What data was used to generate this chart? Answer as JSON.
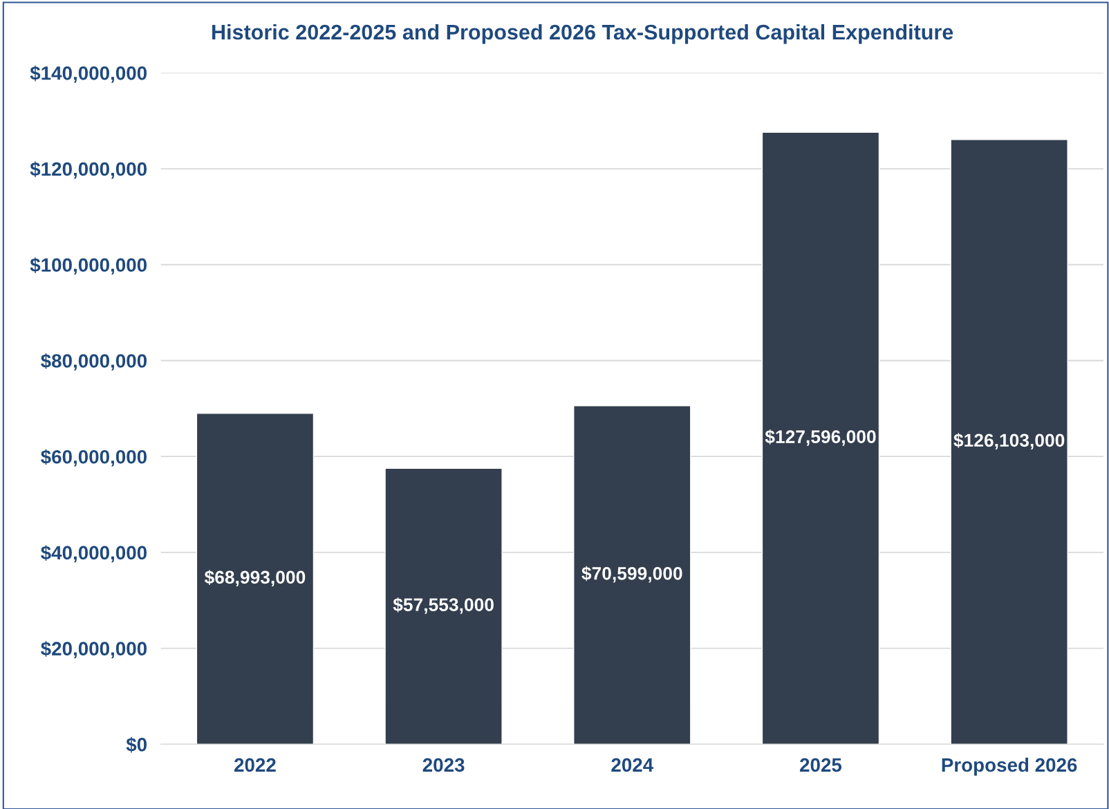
{
  "chart_data": {
    "type": "bar",
    "title": "Historic 2022-2025 and Proposed 2026 Tax-Supported Capital Expenditure",
    "categories": [
      "2022",
      "2023",
      "2024",
      "2025",
      "Proposed 2026"
    ],
    "values": [
      68993000,
      57553000,
      70599000,
      127596000,
      126103000
    ],
    "value_labels": [
      "$68,993,000",
      "$57,553,000",
      "$70,599,000",
      "$127,596,000",
      "$126,103,000"
    ],
    "color": "#333e4e",
    "ylim": [
      0,
      140000000
    ],
    "yticks": [
      {
        "value": 0,
        "label": "$0"
      },
      {
        "value": 20000000,
        "label": "$20,000,000"
      },
      {
        "value": 40000000,
        "label": "$40,000,000"
      },
      {
        "value": 60000000,
        "label": "$60,000,000"
      },
      {
        "value": 80000000,
        "label": "$80,000,000"
      },
      {
        "value": 100000000,
        "label": "$100,000,000"
      },
      {
        "value": 120000000,
        "label": "$120,000,000"
      },
      {
        "value": 140000000,
        "label": "$140,000,000"
      }
    ],
    "grid": "y"
  }
}
